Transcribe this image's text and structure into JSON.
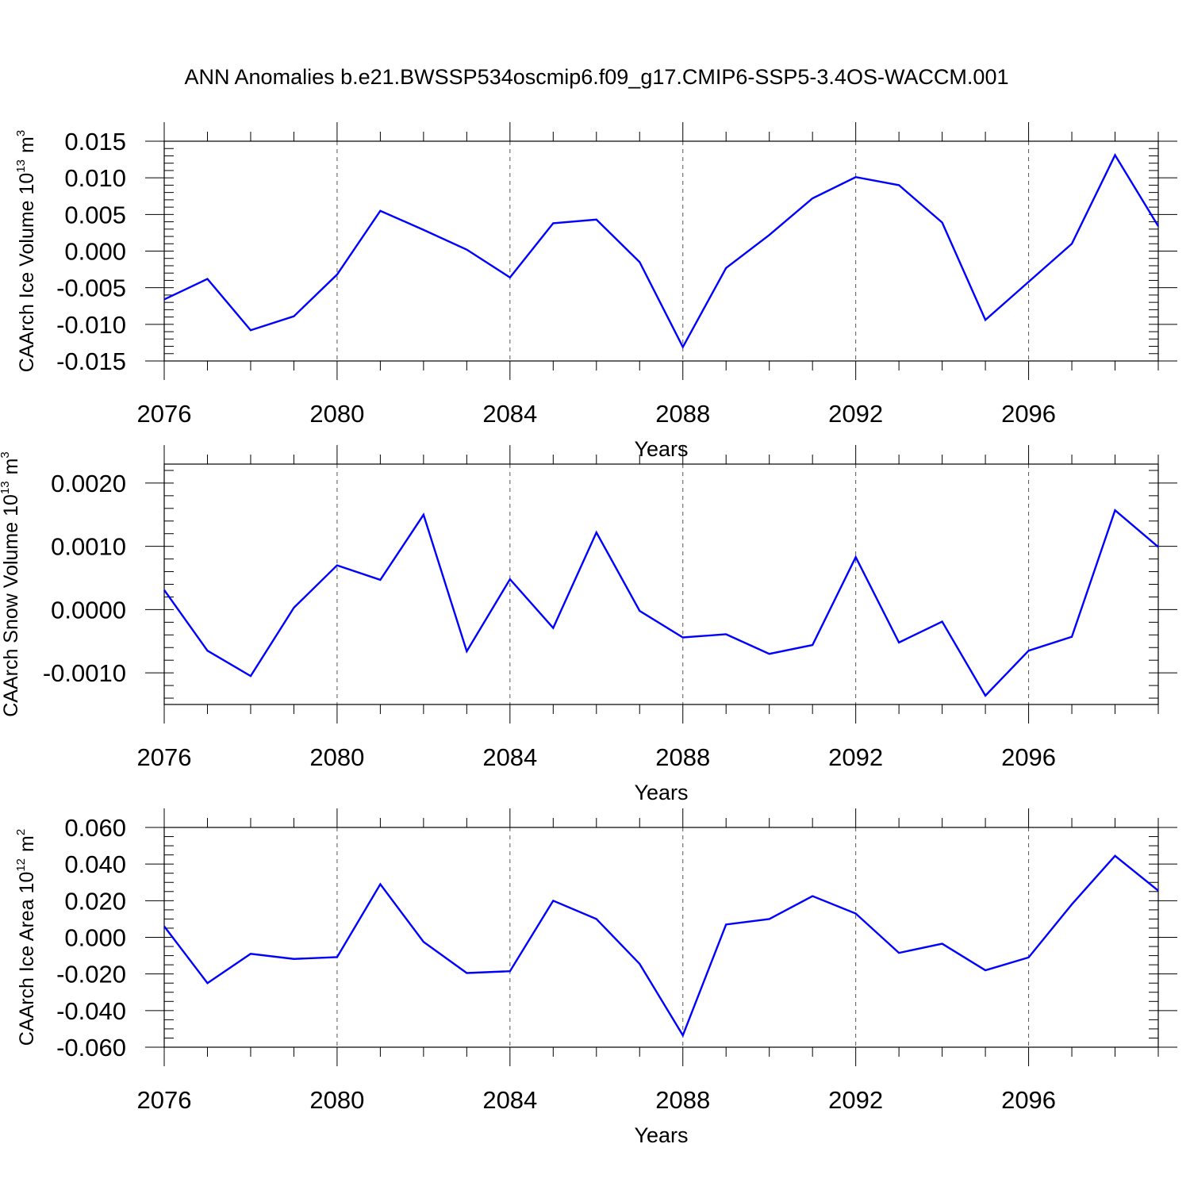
{
  "title": "ANN Anomalies b.e21.BWSSP534oscmip6.f09_g17.CMIP6-SSP5-3.4OS-WACCM.001",
  "colors": {
    "line": "#0000ff",
    "frame": "#000000",
    "grid": "#555555"
  },
  "chart_data": [
    {
      "type": "line",
      "ylabel_main": "CAArch Ice Volume 10",
      "ylabel_exp": "13",
      "ylabel_unit": "m",
      "ylabel_unit_exp": "3",
      "xlabel": "Years",
      "xlim": [
        2076,
        2099
      ],
      "ylim": [
        -0.015,
        0.015
      ],
      "x_ticks": [
        2076,
        2080,
        2084,
        2088,
        2092,
        2096
      ],
      "x_tick_labels": [
        "2076",
        "2080",
        "2084",
        "2088",
        "2092",
        "2096"
      ],
      "y_ticks": [
        -0.015,
        -0.01,
        -0.005,
        0.0,
        0.005,
        0.01,
        0.015
      ],
      "y_tick_labels": [
        "-0.015",
        "-0.010",
        "-0.005",
        "0.000",
        "0.005",
        "0.010",
        "0.015"
      ],
      "y_minor_step": 0.001,
      "x": [
        2076,
        2077,
        2078,
        2079,
        2080,
        2081,
        2082,
        2083,
        2084,
        2085,
        2086,
        2087,
        2088,
        2089,
        2090,
        2091,
        2092,
        2093,
        2094,
        2095,
        2096,
        2097,
        2098,
        2099
      ],
      "values": [
        -0.0066,
        -0.0038,
        -0.0108,
        -0.0089,
        -0.0032,
        0.0055,
        0.0029,
        0.0002,
        -0.0036,
        0.0038,
        0.0043,
        -0.0015,
        -0.0131,
        -0.0023,
        0.0022,
        0.0072,
        0.0101,
        0.009,
        0.0039,
        -0.0094,
        -0.0042,
        0.001,
        0.0131,
        0.0034
      ]
    },
    {
      "type": "line",
      "ylabel_main": "CAArch Snow Volume 10",
      "ylabel_exp": "13",
      "ylabel_unit": "m",
      "ylabel_unit_exp": "3",
      "xlabel": "Years",
      "xlim": [
        2076,
        2099
      ],
      "ylim": [
        -0.0015,
        0.0023
      ],
      "x_ticks": [
        2076,
        2080,
        2084,
        2088,
        2092,
        2096
      ],
      "x_tick_labels": [
        "2076",
        "2080",
        "2084",
        "2088",
        "2092",
        "2096"
      ],
      "y_ticks": [
        -0.001,
        0.0,
        0.001,
        0.002
      ],
      "y_tick_labels": [
        "-0.0010",
        "0.0000",
        "0.0010",
        "0.0020"
      ],
      "y_minor_step": 0.0002,
      "x": [
        2076,
        2077,
        2078,
        2079,
        2080,
        2081,
        2082,
        2083,
        2084,
        2085,
        2086,
        2087,
        2088,
        2089,
        2090,
        2091,
        2092,
        2093,
        2094,
        2095,
        2096,
        2097,
        2098,
        2099
      ],
      "values": [
        0.00031,
        -0.00065,
        -0.00105,
        3e-05,
        0.0007,
        0.00047,
        0.0015,
        -0.00066,
        0.00048,
        -0.00029,
        0.00122,
        -2e-05,
        -0.00044,
        -0.00039,
        -0.0007,
        -0.00056,
        0.00083,
        -0.00052,
        -0.00019,
        -0.00136,
        -0.00065,
        -0.00043,
        0.00157,
        0.00099
      ]
    },
    {
      "type": "line",
      "ylabel_main": "CAArch Ice Area 10",
      "ylabel_exp": "12",
      "ylabel_unit": "m",
      "ylabel_unit_exp": "2",
      "xlabel": "Years",
      "xlim": [
        2076,
        2099
      ],
      "ylim": [
        -0.06,
        0.06
      ],
      "x_ticks": [
        2076,
        2080,
        2084,
        2088,
        2092,
        2096
      ],
      "x_tick_labels": [
        "2076",
        "2080",
        "2084",
        "2088",
        "2092",
        "2096"
      ],
      "y_ticks": [
        -0.06,
        -0.04,
        -0.02,
        0.0,
        0.02,
        0.04,
        0.06
      ],
      "y_tick_labels": [
        "-0.060",
        "-0.040",
        "-0.020",
        "0.000",
        "0.020",
        "0.040",
        "0.060"
      ],
      "y_minor_step": 0.005,
      "x": [
        2076,
        2077,
        2078,
        2079,
        2080,
        2081,
        2082,
        2083,
        2084,
        2085,
        2086,
        2087,
        2088,
        2089,
        2090,
        2091,
        2092,
        2093,
        2094,
        2095,
        2096,
        2097,
        2098,
        2099
      ],
      "values": [
        0.006,
        -0.025,
        -0.009,
        -0.0118,
        -0.0108,
        0.029,
        -0.0025,
        -0.0195,
        -0.0185,
        0.02,
        0.01,
        -0.0145,
        -0.0535,
        0.007,
        0.01,
        0.0225,
        0.013,
        -0.0085,
        -0.0035,
        -0.018,
        -0.011,
        0.018,
        0.0445,
        0.0255
      ]
    }
  ]
}
